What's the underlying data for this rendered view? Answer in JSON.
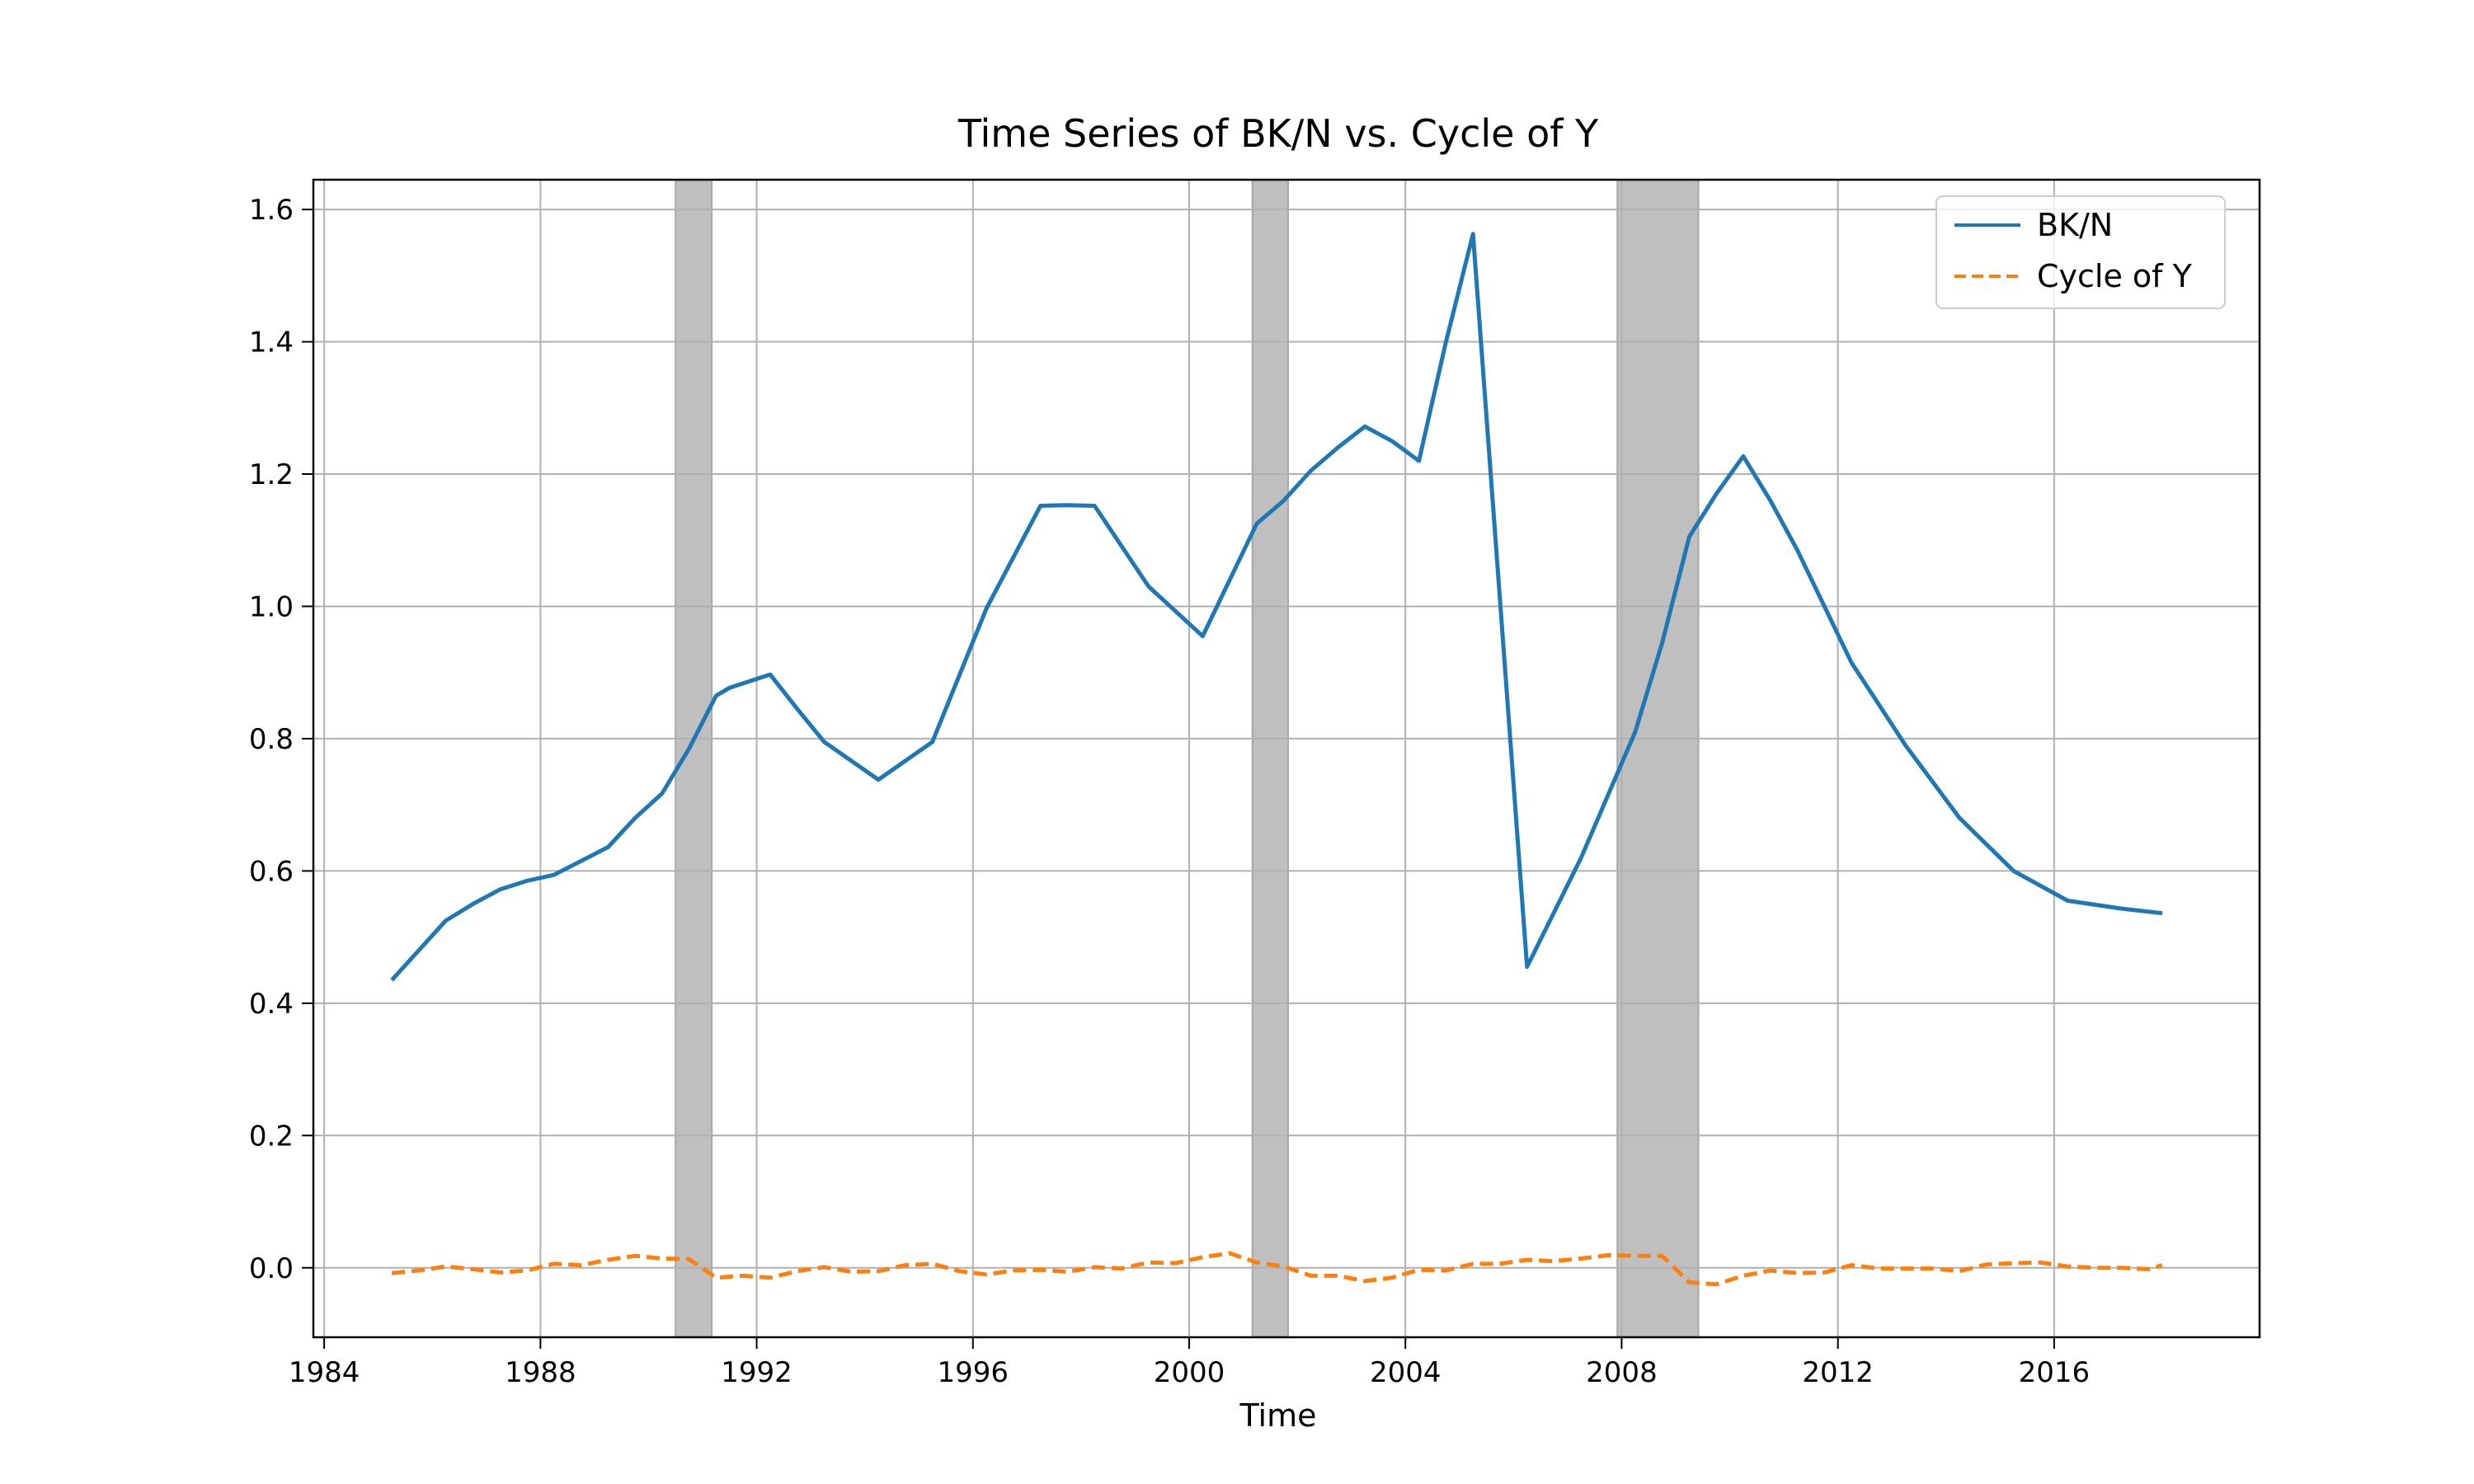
{
  "chart_data": {
    "type": "line",
    "title": "Time Series of BK/N vs. Cycle of Y",
    "xlabel": "Time",
    "ylabel": "",
    "xlim": [
      1983.8,
      2019.8
    ],
    "ylim": [
      -0.105,
      1.645
    ],
    "x_ticks": [
      "1984",
      "1988",
      "1992",
      "1996",
      "2000",
      "2004",
      "2008",
      "2012",
      "2016"
    ],
    "y_ticks": [
      "0.0",
      "0.2",
      "0.4",
      "0.6",
      "0.8",
      "1.0",
      "1.2",
      "1.4",
      "1.6"
    ],
    "grid": true,
    "legend_position": "top-right",
    "recessions": [
      {
        "start": 1990.5,
        "end": 1991.17
      },
      {
        "start": 2001.17,
        "end": 2001.83
      },
      {
        "start": 2007.92,
        "end": 2009.42
      }
    ],
    "series": [
      {
        "name": "BK/N",
        "color": "#1f77b4",
        "style": "solid",
        "points": [
          [
            1985.25,
            0.435
          ],
          [
            1986.25,
            0.525
          ],
          [
            1986.75,
            0.55
          ],
          [
            1987.25,
            0.572
          ],
          [
            1987.75,
            0.585
          ],
          [
            1988.25,
            0.594
          ],
          [
            1988.75,
            0.615
          ],
          [
            1989.25,
            0.636
          ],
          [
            1989.75,
            0.68
          ],
          [
            1990.25,
            0.717
          ],
          [
            1990.75,
            0.785
          ],
          [
            1991.25,
            0.865
          ],
          [
            1991.5,
            0.877
          ],
          [
            1992.25,
            0.897
          ],
          [
            1992.75,
            0.845
          ],
          [
            1993.25,
            0.795
          ],
          [
            1994.25,
            0.738
          ],
          [
            1995.25,
            0.795
          ],
          [
            1996.25,
            0.997
          ],
          [
            1997.25,
            1.152
          ],
          [
            1997.75,
            1.153
          ],
          [
            1998.25,
            1.152
          ],
          [
            1999.25,
            1.03
          ],
          [
            2000.25,
            0.955
          ],
          [
            2001.25,
            1.125
          ],
          [
            2001.75,
            1.16
          ],
          [
            2002.25,
            1.205
          ],
          [
            2002.75,
            1.24
          ],
          [
            2003.25,
            1.272
          ],
          [
            2003.75,
            1.25
          ],
          [
            2004.25,
            1.22
          ],
          [
            2004.75,
            1.4
          ],
          [
            2005.25,
            1.563
          ],
          [
            2006.25,
            0.455
          ],
          [
            2007.25,
            0.62
          ],
          [
            2008.25,
            0.81
          ],
          [
            2008.75,
            0.945
          ],
          [
            2009.25,
            1.105
          ],
          [
            2009.75,
            1.17
          ],
          [
            2010.25,
            1.227
          ],
          [
            2010.75,
            1.16
          ],
          [
            2011.25,
            1.085
          ],
          [
            2012.25,
            0.915
          ],
          [
            2013.25,
            0.79
          ],
          [
            2014.25,
            0.68
          ],
          [
            2015.25,
            0.6
          ],
          [
            2016.25,
            0.555
          ],
          [
            2017.25,
            0.543
          ],
          [
            2018.0,
            0.536
          ]
        ]
      },
      {
        "name": "Cycle of Y",
        "color": "#ff7f0e",
        "style": "dashed",
        "points": [
          [
            1985.25,
            -0.008
          ],
          [
            1985.75,
            -0.004
          ],
          [
            1986.25,
            0.002
          ],
          [
            1986.75,
            -0.002
          ],
          [
            1987.25,
            -0.007
          ],
          [
            1987.75,
            -0.004
          ],
          [
            1988.25,
            0.006
          ],
          [
            1988.75,
            0.004
          ],
          [
            1989.25,
            0.012
          ],
          [
            1989.75,
            0.018
          ],
          [
            1990.25,
            0.014
          ],
          [
            1990.75,
            0.013
          ],
          [
            1991.25,
            -0.015
          ],
          [
            1991.75,
            -0.012
          ],
          [
            1992.25,
            -0.015
          ],
          [
            1992.75,
            -0.005
          ],
          [
            1993.25,
            0.001
          ],
          [
            1993.75,
            -0.006
          ],
          [
            1994.25,
            -0.005
          ],
          [
            1994.75,
            0.004
          ],
          [
            1995.25,
            0.006
          ],
          [
            1995.75,
            -0.005
          ],
          [
            1996.25,
            -0.01
          ],
          [
            1996.75,
            -0.004
          ],
          [
            1997.25,
            -0.003
          ],
          [
            1997.75,
            -0.006
          ],
          [
            1998.25,
            0.001
          ],
          [
            1998.75,
            -0.001
          ],
          [
            1999.25,
            0.008
          ],
          [
            1999.75,
            0.007
          ],
          [
            2000.25,
            0.016
          ],
          [
            2000.75,
            0.022
          ],
          [
            2001.25,
            0.008
          ],
          [
            2001.75,
            0.002
          ],
          [
            2002.25,
            -0.012
          ],
          [
            2002.75,
            -0.012
          ],
          [
            2003.25,
            -0.02
          ],
          [
            2003.75,
            -0.015
          ],
          [
            2004.25,
            -0.003
          ],
          [
            2004.75,
            -0.004
          ],
          [
            2005.25,
            0.006
          ],
          [
            2005.75,
            0.006
          ],
          [
            2006.25,
            0.012
          ],
          [
            2006.75,
            0.01
          ],
          [
            2007.25,
            0.014
          ],
          [
            2007.75,
            0.019
          ],
          [
            2008.25,
            0.018
          ],
          [
            2008.75,
            0.018
          ],
          [
            2009.25,
            -0.022
          ],
          [
            2009.75,
            -0.025
          ],
          [
            2010.25,
            -0.012
          ],
          [
            2010.75,
            -0.004
          ],
          [
            2011.25,
            -0.008
          ],
          [
            2011.75,
            -0.007
          ],
          [
            2012.25,
            0.004
          ],
          [
            2012.75,
            -0.001
          ],
          [
            2013.25,
            -0.001
          ],
          [
            2013.75,
            -0.001
          ],
          [
            2014.25,
            -0.005
          ],
          [
            2014.75,
            0.005
          ],
          [
            2015.25,
            0.007
          ],
          [
            2015.75,
            0.008
          ],
          [
            2016.25,
            0.002
          ],
          [
            2016.75,
            0.0
          ],
          [
            2017.25,
            0.0
          ],
          [
            2017.75,
            -0.002
          ],
          [
            2018.0,
            0.004
          ]
        ]
      }
    ]
  }
}
